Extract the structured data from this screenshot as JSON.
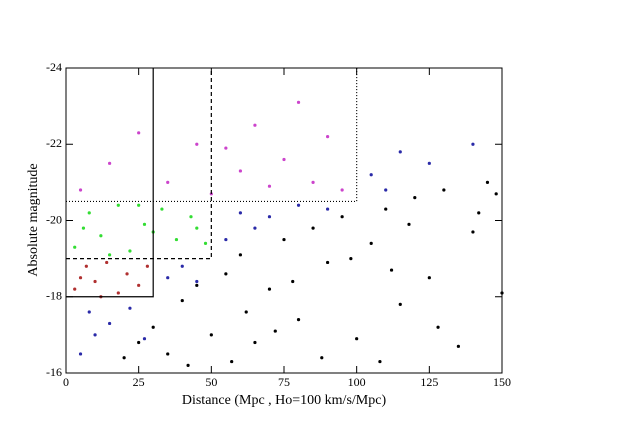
{
  "chart_data": {
    "type": "scatter",
    "xlabel": "Distance (Mpc , Ho=100 km/s/Mpc)",
    "ylabel": "Absolute magnitude",
    "xlim": [
      0,
      150
    ],
    "ylim": [
      -16,
      -24
    ],
    "xticks": [
      0,
      25,
      50,
      75,
      100,
      125,
      150
    ],
    "yticks": [
      -16,
      -18,
      -20,
      -22,
      -24
    ],
    "series": [
      {
        "color": "#000000",
        "x": [
          20,
          25,
          30,
          35,
          40,
          45,
          50,
          55,
          60,
          65,
          70,
          75,
          80,
          85,
          90,
          95,
          100,
          105,
          110,
          115,
          120,
          125,
          130,
          135,
          140,
          145,
          150,
          62,
          88,
          112,
          128,
          142,
          78,
          98,
          118,
          42,
          57,
          72,
          108,
          148
        ],
        "y": [
          -16.4,
          -16.8,
          -17.2,
          -16.5,
          -17.9,
          -18.3,
          -17.0,
          -18.6,
          -19.1,
          -16.8,
          -18.2,
          -19.5,
          -17.4,
          -19.8,
          -18.9,
          -20.1,
          -16.9,
          -19.4,
          -20.3,
          -17.8,
          -20.6,
          -18.5,
          -20.8,
          -16.7,
          -19.7,
          -21.0,
          -18.1,
          -17.6,
          -16.4,
          -18.7,
          -17.2,
          -20.2,
          -18.4,
          -19.0,
          -19.9,
          -16.2,
          -16.3,
          -17.1,
          -16.3,
          -20.7
        ]
      },
      {
        "color": "#2a2aa8",
        "x": [
          5,
          10,
          15,
          8,
          22,
          27,
          35,
          40,
          45,
          55,
          60,
          70,
          80,
          90,
          105,
          115,
          125,
          140,
          110,
          65
        ],
        "y": [
          -16.5,
          -17.0,
          -17.3,
          -17.6,
          -17.7,
          -16.9,
          -18.5,
          -18.8,
          -18.4,
          -19.5,
          -20.2,
          -20.1,
          -20.4,
          -20.3,
          -21.2,
          -21.8,
          -21.5,
          -22.0,
          -20.8,
          -19.8
        ]
      },
      {
        "color": "#33dd33",
        "x": [
          3,
          8,
          12,
          18,
          22,
          27,
          33,
          38,
          43,
          48,
          15,
          30,
          45,
          6,
          25
        ],
        "y": [
          -19.3,
          -20.2,
          -19.6,
          -20.4,
          -19.2,
          -19.9,
          -20.3,
          -19.5,
          -20.1,
          -19.4,
          -19.1,
          -19.7,
          -19.8,
          -19.8,
          -20.4
        ]
      },
      {
        "color": "#b03030",
        "x": [
          3,
          7,
          10,
          14,
          18,
          21,
          25,
          28,
          12,
          5
        ],
        "y": [
          -18.2,
          -18.8,
          -18.4,
          -18.9,
          -18.1,
          -18.6,
          -18.3,
          -18.8,
          -18.0,
          -18.5
        ]
      },
      {
        "color": "#cc44cc",
        "x": [
          5,
          15,
          25,
          35,
          45,
          50,
          60,
          65,
          70,
          75,
          80,
          85,
          90,
          95,
          55
        ],
        "y": [
          -20.8,
          -21.5,
          -22.3,
          -21.0,
          -22.0,
          -20.7,
          -21.3,
          -22.5,
          -20.9,
          -21.6,
          -23.1,
          -21.0,
          -22.2,
          -20.8,
          -21.9
        ]
      }
    ],
    "limit_lines": [
      {
        "style": "solid",
        "x": [
          0,
          30,
          30
        ],
        "y": [
          -18,
          -18,
          -24
        ]
      },
      {
        "style": "dashed",
        "x": [
          0,
          50,
          50
        ],
        "y": [
          -19,
          -19,
          -24
        ]
      },
      {
        "style": "dotted",
        "x": [
          0,
          100,
          100
        ],
        "y": [
          -20.5,
          -20.5,
          -24
        ]
      }
    ]
  }
}
